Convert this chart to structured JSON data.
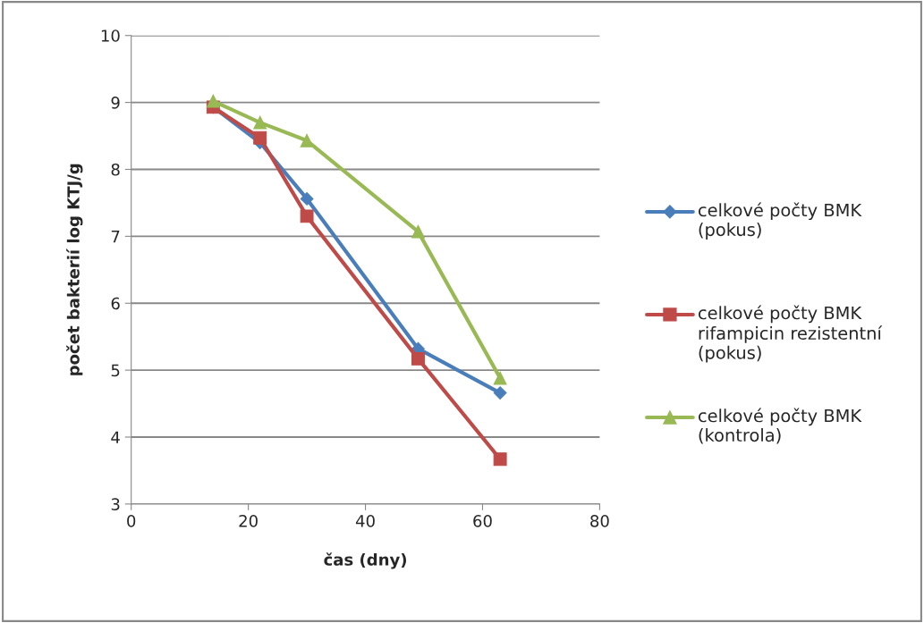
{
  "chart_data": {
    "type": "line",
    "xlabel": "čas (dny)",
    "ylabel": "počet bakterií log KTJ/g",
    "x": [
      14,
      22,
      30,
      49,
      63
    ],
    "series": [
      {
        "name": "celkové počty BMK (pokus)",
        "color": "#4a7ebb",
        "marker": "diamond",
        "values": [
          8.93,
          8.4,
          7.56,
          5.32,
          4.66
        ]
      },
      {
        "name": "celkové počty BMK rifampicin rezistentní (pokus)",
        "color": "#be4b48",
        "marker": "square",
        "values": [
          8.93,
          8.47,
          7.3,
          5.17,
          3.67
        ]
      },
      {
        "name": "celkové počty BMK (kontrola)",
        "color": "#98b954",
        "marker": "triangle",
        "values": [
          9.02,
          8.7,
          8.43,
          7.07,
          4.88
        ]
      }
    ],
    "xlim": [
      0,
      80
    ],
    "xticks": [
      0,
      20,
      40,
      60,
      80
    ],
    "ylim": [
      3,
      10
    ],
    "yticks": [
      3,
      4,
      5,
      6,
      7,
      8,
      9,
      10
    ],
    "grid": "y",
    "legend": "right",
    "line_style": "solid"
  }
}
